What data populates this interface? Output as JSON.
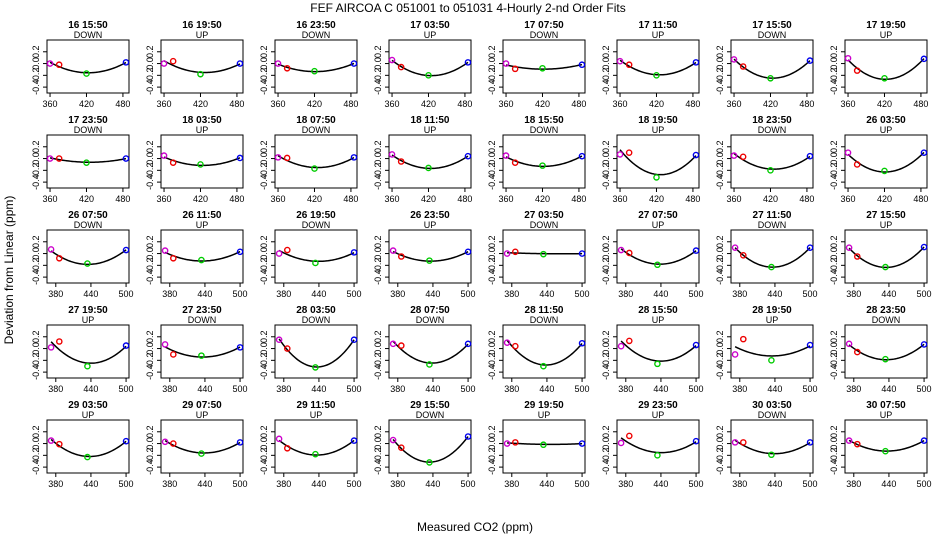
{
  "title": "FEF   AIRCOA C   051001 to 051031   4-Hourly 2-nd Order Fits",
  "xlabel": "Measured CO2 (ppm)",
  "ylabel": "Deviation from Linear (ppm)",
  "colors": {
    "line": "#000000",
    "p1": "#cc00cc",
    "p2": "#ee0000",
    "p3": "#00cc00",
    "p4": "#0000ee"
  },
  "chart_data": {
    "type": "scatter",
    "grid": false,
    "ylim": [
      -0.5,
      0.4
    ],
    "yticks": [
      "-0.4",
      "-0.2",
      "0.0",
      "0.2"
    ],
    "rows": [
      {
        "xlim": [
          355,
          490
        ],
        "xticks": [
          360,
          420,
          480
        ],
        "std_x": [
          360,
          375,
          420,
          485
        ]
      },
      {
        "xlim": [
          355,
          490
        ],
        "xticks": [
          360,
          420,
          480
        ],
        "std_x": [
          360,
          375,
          420,
          485
        ]
      },
      {
        "xlim": [
          365,
          505
        ],
        "xticks": [
          380,
          440,
          500
        ],
        "std_x": [
          372,
          386,
          434,
          500
        ]
      },
      {
        "xlim": [
          365,
          505
        ],
        "xticks": [
          380,
          440,
          500
        ],
        "std_x": [
          372,
          386,
          434,
          500
        ]
      },
      {
        "xlim": [
          365,
          505
        ],
        "xticks": [
          380,
          440,
          500
        ],
        "std_x": [
          372,
          386,
          434,
          500
        ]
      }
    ],
    "panels": [
      {
        "title": "16 15:50",
        "dir": "DOWN",
        "y": [
          0.0,
          -0.02,
          -0.17,
          0.02
        ]
      },
      {
        "title": "16 19:50",
        "dir": "UP",
        "y": [
          0.0,
          0.04,
          -0.18,
          0.0
        ]
      },
      {
        "title": "16 23:50",
        "dir": "DOWN",
        "y": [
          0.0,
          -0.08,
          -0.13,
          0.0
        ]
      },
      {
        "title": "17 03:50",
        "dir": "UP",
        "y": [
          0.06,
          -0.06,
          -0.2,
          0.02
        ]
      },
      {
        "title": "17 07:50",
        "dir": "DOWN",
        "y": [
          0.0,
          -0.09,
          -0.08,
          -0.02
        ]
      },
      {
        "title": "17 11:50",
        "dir": "UP",
        "y": [
          0.04,
          -0.02,
          -0.2,
          0.02
        ]
      },
      {
        "title": "17 15:50",
        "dir": "DOWN",
        "y": [
          0.07,
          -0.05,
          -0.25,
          0.05
        ]
      },
      {
        "title": "17 19:50",
        "dir": "UP",
        "y": [
          0.09,
          -0.12,
          -0.25,
          0.08
        ]
      },
      {
        "title": "17 23:50",
        "dir": "DOWN",
        "y": [
          0.0,
          0.0,
          -0.07,
          0.0
        ]
      },
      {
        "title": "18 03:50",
        "dir": "UP",
        "y": [
          0.05,
          -0.07,
          -0.1,
          0.01
        ]
      },
      {
        "title": "18 07:50",
        "dir": "DOWN",
        "y": [
          0.02,
          0.01,
          -0.17,
          0.02
        ]
      },
      {
        "title": "18 11:50",
        "dir": "UP",
        "y": [
          0.07,
          -0.05,
          -0.16,
          0.04
        ]
      },
      {
        "title": "18 15:50",
        "dir": "DOWN",
        "y": [
          0.05,
          -0.07,
          -0.12,
          0.04
        ]
      },
      {
        "title": "18 19:50",
        "dir": "UP",
        "y": [
          0.07,
          0.1,
          -0.32,
          0.06
        ]
      },
      {
        "title": "18 23:50",
        "dir": "DOWN",
        "y": [
          0.05,
          0.03,
          -0.2,
          0.04
        ]
      },
      {
        "title": "26 03:50",
        "dir": "UP",
        "y": [
          0.1,
          -0.1,
          -0.21,
          0.1
        ]
      },
      {
        "title": "26 07:50",
        "dir": "DOWN",
        "y": [
          0.07,
          -0.08,
          -0.17,
          0.06
        ]
      },
      {
        "title": "26 11:50",
        "dir": "UP",
        "y": [
          0.05,
          -0.08,
          -0.11,
          0.03
        ]
      },
      {
        "title": "26 19:50",
        "dir": "DOWN",
        "y": [
          0.0,
          0.06,
          -0.16,
          0.02
        ]
      },
      {
        "title": "26 23:50",
        "dir": "UP",
        "y": [
          0.05,
          -0.05,
          -0.12,
          0.03
        ]
      },
      {
        "title": "27 03:50",
        "dir": "DOWN",
        "y": [
          0.0,
          0.03,
          -0.01,
          0.0
        ]
      },
      {
        "title": "27 07:50",
        "dir": "UP",
        "y": [
          0.06,
          0.01,
          -0.19,
          0.05
        ]
      },
      {
        "title": "27 11:50",
        "dir": "DOWN",
        "y": [
          0.1,
          -0.03,
          -0.23,
          0.1
        ]
      },
      {
        "title": "27 15:50",
        "dir": "UP",
        "y": [
          0.1,
          -0.05,
          -0.23,
          0.11
        ]
      },
      {
        "title": "27 19:50",
        "dir": "UP",
        "y": [
          0.02,
          0.12,
          -0.3,
          0.05
        ]
      },
      {
        "title": "27 23:50",
        "dir": "DOWN",
        "y": [
          0.07,
          -0.1,
          -0.12,
          0.02
        ]
      },
      {
        "title": "28 03:50",
        "dir": "DOWN",
        "y": [
          0.15,
          0.0,
          -0.32,
          0.15
        ]
      },
      {
        "title": "28 07:50",
        "dir": "DOWN",
        "y": [
          0.08,
          0.05,
          -0.27,
          0.08
        ]
      },
      {
        "title": "28 11:50",
        "dir": "DOWN",
        "y": [
          0.1,
          0.04,
          -0.3,
          0.09
        ]
      },
      {
        "title": "28 15:50",
        "dir": "UP",
        "y": [
          0.04,
          0.13,
          -0.26,
          0.06
        ]
      },
      {
        "title": "28 19:50",
        "dir": "UP",
        "y": [
          -0.1,
          0.16,
          -0.2,
          0.06
        ]
      },
      {
        "title": "28 23:50",
        "dir": "DOWN",
        "y": [
          0.08,
          -0.06,
          -0.18,
          0.07
        ]
      },
      {
        "title": "29 03:50",
        "dir": "UP",
        "y": [
          0.05,
          -0.01,
          -0.23,
          0.04
        ]
      },
      {
        "title": "29 07:50",
        "dir": "UP",
        "y": [
          0.03,
          0.0,
          -0.17,
          0.02
        ]
      },
      {
        "title": "29 11:50",
        "dir": "UP",
        "y": [
          0.08,
          -0.08,
          -0.18,
          0.05
        ]
      },
      {
        "title": "29 15:50",
        "dir": "DOWN",
        "y": [
          0.06,
          -0.07,
          -0.32,
          0.12
        ]
      },
      {
        "title": "29 19:50",
        "dir": "UP",
        "y": [
          0.0,
          0.02,
          -0.02,
          0.0
        ]
      },
      {
        "title": "29 23:50",
        "dir": "UP",
        "y": [
          0.01,
          0.13,
          -0.2,
          0.04
        ]
      },
      {
        "title": "30 03:50",
        "dir": "DOWN",
        "y": [
          0.02,
          0.02,
          -0.19,
          0.02
        ]
      },
      {
        "title": "30 07:50",
        "dir": "UP",
        "y": [
          0.05,
          -0.01,
          -0.13,
          0.05
        ]
      }
    ]
  }
}
